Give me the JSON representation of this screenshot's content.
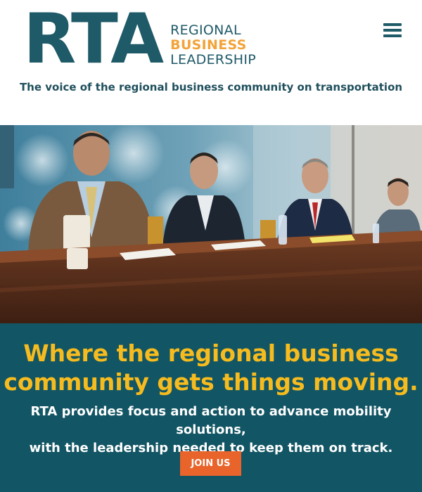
{
  "header": {
    "logo": {
      "rta": "RTA",
      "line1": "REGIONAL",
      "line2": "BUSINESS",
      "line3": "LEADERSHIP"
    },
    "tagline": "The voice of the regional business community on transportation",
    "menu_icon": "hamburger-menu-icon"
  },
  "hero": {
    "description_icon": "meeting-photo"
  },
  "band": {
    "headline_line1": "Where the regional business",
    "headline_line2": "community gets things moving.",
    "sub_line1": "RTA provides focus and action to advance mobility solutions,",
    "sub_line2": "with the leadership needed to keep them on track.",
    "cta_label": "JOIN US"
  },
  "colors": {
    "brand_teal": "#1f5a68",
    "band_teal": "#125564",
    "accent_yellow": "#f6bb1e",
    "accent_orange": "#e8642b",
    "logo_orange": "#f2a33a"
  }
}
